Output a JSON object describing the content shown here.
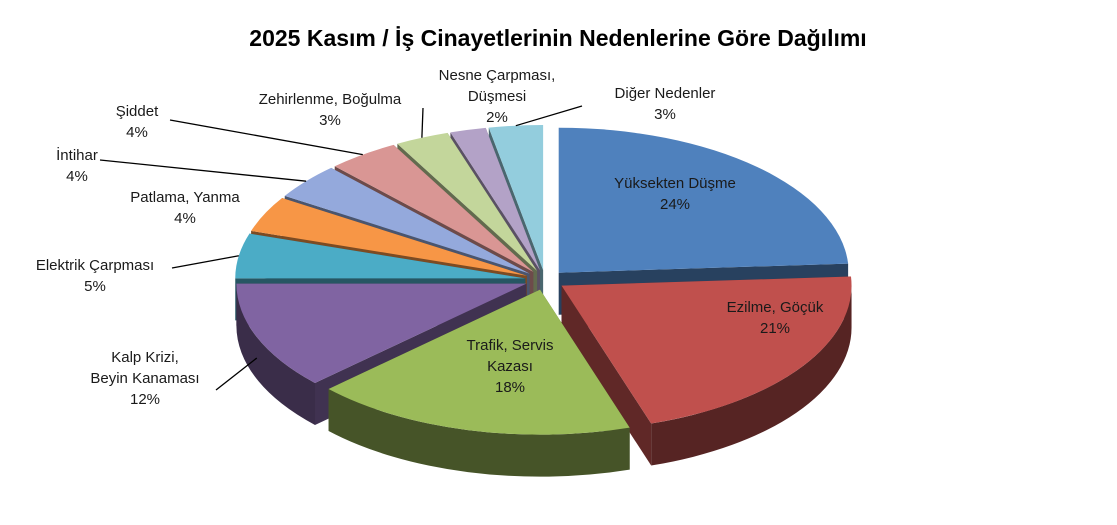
{
  "chart_data": {
    "type": "pie3d",
    "title": "2025 Kasım / İş Cinayetlerinin Nedenlerine Göre Dağılımı",
    "categories": [
      "Yüksekten Düşme",
      "Ezilme, Göçük",
      "Trafik, Servis\nKazası",
      "Kalp Krizi,\nBeyin Kanaması",
      "Elektrik Çarpması",
      "Patlama, Yanma",
      "İntihar",
      "Şiddet",
      "Zehirlenme, Boğulma",
      "Nesne Çarpması,\nDüşmesi",
      "Diğer Nedenler"
    ],
    "values": [
      24,
      21,
      18,
      12,
      5,
      4,
      4,
      4,
      3,
      2,
      3
    ],
    "value_labels": [
      "24%",
      "21%",
      "18%",
      "12%",
      "5%",
      "4%",
      "4%",
      "4%",
      "3%",
      "2%",
      "3%"
    ],
    "colors": [
      "#4f81bd",
      "#c0504d",
      "#9bbb59",
      "#8064a2",
      "#4bacc6",
      "#f79646",
      "#94a9dc",
      "#d99694",
      "#c3d69b",
      "#b3a2c7",
      "#93cddd"
    ]
  }
}
